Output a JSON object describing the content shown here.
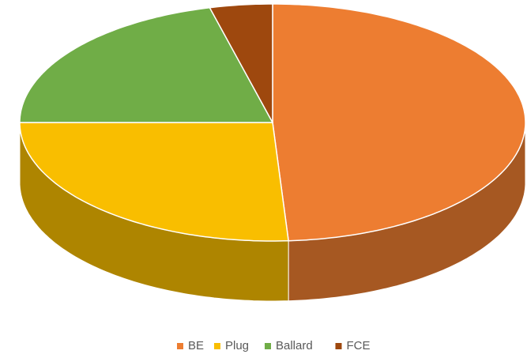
{
  "chart_data": {
    "type": "pie3d",
    "categories": [
      "BE",
      "Plug",
      "Ballard",
      "FCE"
    ],
    "values": [
      49,
      26,
      21,
      4
    ],
    "colors": [
      "#ED7D31",
      "#F9BE00",
      "#70AD47",
      "#9E480E"
    ],
    "legend": "bottom"
  }
}
